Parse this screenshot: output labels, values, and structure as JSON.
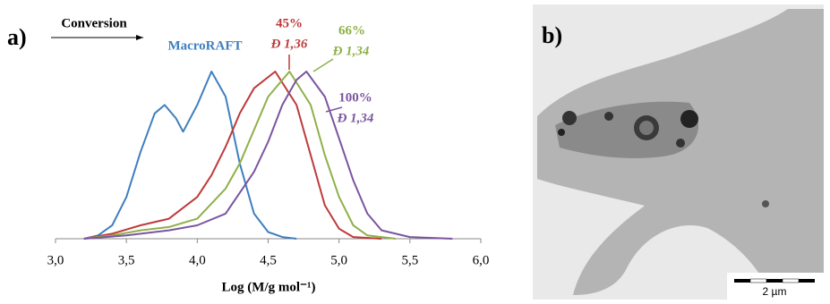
{
  "chart_data": {
    "type": "line",
    "panel_label": "a)",
    "arrow_label": "Conversion",
    "xlabel": "Log (M/g mol⁻¹)",
    "xlim": [
      3.0,
      6.0
    ],
    "ylim": [
      0,
      1
    ],
    "xticks": [
      {
        "value": 3.0,
        "label": "3,0"
      },
      {
        "value": 3.5,
        "label": "3,5"
      },
      {
        "value": 4.0,
        "label": "4,0"
      },
      {
        "value": 4.5,
        "label": "4,5"
      },
      {
        "value": 5.0,
        "label": "5,0"
      },
      {
        "value": 5.5,
        "label": "5,5"
      },
      {
        "value": 6.0,
        "label": "6,0"
      }
    ],
    "series": [
      {
        "name": "MacroRAFT",
        "color": "#3f7fbf",
        "x": [
          3.2,
          3.3,
          3.4,
          3.5,
          3.6,
          3.7,
          3.77,
          3.85,
          3.9,
          4.0,
          4.1,
          4.2,
          4.3,
          4.4,
          4.5,
          4.6,
          4.7
        ],
        "values": [
          0,
          0.02,
          0.08,
          0.25,
          0.52,
          0.75,
          0.8,
          0.72,
          0.64,
          0.8,
          1.0,
          0.85,
          0.45,
          0.15,
          0.04,
          0.01,
          0
        ]
      },
      {
        "name": "45%",
        "dispersity": "Đ 1,36",
        "color": "#be3a3a",
        "x": [
          3.2,
          3.4,
          3.6,
          3.8,
          4.0,
          4.1,
          4.2,
          4.3,
          4.4,
          4.55,
          4.7,
          4.8,
          4.9,
          5.0,
          5.1,
          5.3
        ],
        "values": [
          0,
          0.03,
          0.08,
          0.12,
          0.25,
          0.38,
          0.55,
          0.75,
          0.9,
          1.0,
          0.8,
          0.5,
          0.2,
          0.06,
          0.01,
          0
        ]
      },
      {
        "name": "66%",
        "dispersity": "Đ 1,34",
        "color": "#8fb04a",
        "x": [
          3.2,
          3.4,
          3.6,
          3.8,
          4.0,
          4.2,
          4.3,
          4.4,
          4.5,
          4.65,
          4.8,
          4.9,
          5.0,
          5.1,
          5.2,
          5.4
        ],
        "values": [
          0,
          0.02,
          0.05,
          0.07,
          0.12,
          0.3,
          0.45,
          0.65,
          0.85,
          1.0,
          0.8,
          0.5,
          0.25,
          0.08,
          0.02,
          0
        ]
      },
      {
        "name": "100%",
        "dispersity": "Đ 1,34",
        "color": "#7b55a0",
        "x": [
          3.2,
          3.5,
          3.8,
          4.0,
          4.2,
          4.4,
          4.5,
          4.6,
          4.7,
          4.77,
          4.9,
          5.0,
          5.1,
          5.2,
          5.3,
          5.5,
          5.8
        ],
        "values": [
          0,
          0.02,
          0.05,
          0.08,
          0.15,
          0.4,
          0.58,
          0.8,
          0.95,
          1.0,
          0.85,
          0.6,
          0.35,
          0.15,
          0.05,
          0.01,
          0
        ]
      }
    ]
  },
  "image": {
    "panel_label": "b)",
    "scale_bar": "2 µm"
  }
}
